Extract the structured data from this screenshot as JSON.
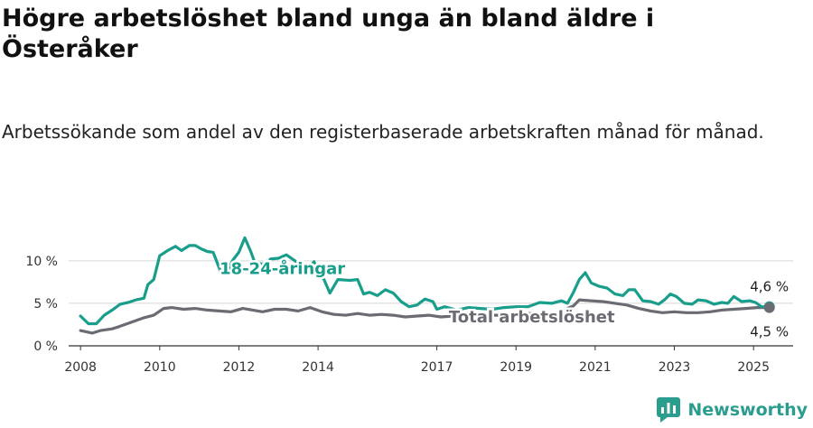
{
  "header": {
    "title": "Högre arbetslöshet bland unga än bland äldre i Österåker",
    "subtitle": "Arbetssökande som andel av den registerbaserade arbetskraften månad för månad."
  },
  "brand": {
    "name": "Newsworthy",
    "icon": "newsworthy-logo-icon",
    "color": "#2a9d8f"
  },
  "chart_data": {
    "type": "line",
    "title": "Högre arbetslöshet bland unga än bland äldre i Österåker",
    "subtitle": "Arbetssökande som andel av den registerbaserade arbetskraften månad för månad.",
    "xlabel": "",
    "ylabel": "",
    "xlim": [
      2007.7,
      2026.0
    ],
    "ylim": [
      0,
      12
    ],
    "yticks": [
      0,
      5,
      10
    ],
    "ytick_labels": [
      "0 %",
      "5 %",
      "10 %"
    ],
    "xticks": [
      2008,
      2010,
      2012,
      2014,
      2017,
      2019,
      2021,
      2023,
      2025
    ],
    "xtick_labels": [
      "2008",
      "2010",
      "2012",
      "2014",
      "2017",
      "2019",
      "2021",
      "2023",
      "2025"
    ],
    "grid": "horizontal",
    "series": [
      {
        "name": "18-24-åringar",
        "color": "#1a9e8c",
        "points": [
          [
            2008.0,
            3.5
          ],
          [
            2008.2,
            2.6
          ],
          [
            2008.4,
            2.6
          ],
          [
            2008.6,
            3.6
          ],
          [
            2008.8,
            4.2
          ],
          [
            2009.0,
            4.9
          ],
          [
            2009.2,
            5.1
          ],
          [
            2009.4,
            5.4
          ],
          [
            2009.6,
            5.6
          ],
          [
            2009.7,
            7.2
          ],
          [
            2009.85,
            7.8
          ],
          [
            2010.0,
            10.6
          ],
          [
            2010.2,
            11.2
          ],
          [
            2010.4,
            11.7
          ],
          [
            2010.55,
            11.2
          ],
          [
            2010.75,
            11.8
          ],
          [
            2010.9,
            11.8
          ],
          [
            2011.05,
            11.4
          ],
          [
            2011.2,
            11.1
          ],
          [
            2011.35,
            11.0
          ],
          [
            2011.55,
            8.6
          ],
          [
            2011.7,
            8.7
          ],
          [
            2011.85,
            10.1
          ],
          [
            2012.0,
            11.0
          ],
          [
            2012.15,
            12.7
          ],
          [
            2012.3,
            11.1
          ],
          [
            2012.4,
            9.8
          ],
          [
            2012.6,
            9.6
          ],
          [
            2012.8,
            10.2
          ],
          [
            2013.0,
            10.3
          ],
          [
            2013.2,
            10.7
          ],
          [
            2013.45,
            9.9
          ],
          [
            2013.7,
            8.9
          ],
          [
            2013.9,
            9.9
          ],
          [
            2014.0,
            8.5
          ],
          [
            2014.15,
            7.8
          ],
          [
            2014.3,
            6.2
          ],
          [
            2014.5,
            7.8
          ],
          [
            2014.8,
            7.7
          ],
          [
            2015.0,
            7.8
          ],
          [
            2015.15,
            6.1
          ],
          [
            2015.3,
            6.3
          ],
          [
            2015.5,
            5.9
          ],
          [
            2015.7,
            6.6
          ],
          [
            2015.9,
            6.2
          ],
          [
            2016.1,
            5.2
          ],
          [
            2016.3,
            4.6
          ],
          [
            2016.5,
            4.8
          ],
          [
            2016.7,
            5.5
          ],
          [
            2016.9,
            5.2
          ],
          [
            2017.0,
            4.3
          ],
          [
            2017.2,
            4.6
          ],
          [
            2017.5,
            4.2
          ],
          [
            2017.8,
            4.5
          ],
          [
            2018.1,
            4.4
          ],
          [
            2018.4,
            4.3
          ],
          [
            2018.7,
            4.5
          ],
          [
            2019.0,
            4.6
          ],
          [
            2019.3,
            4.6
          ],
          [
            2019.6,
            5.1
          ],
          [
            2019.9,
            5.0
          ],
          [
            2020.15,
            5.3
          ],
          [
            2020.3,
            5.0
          ],
          [
            2020.45,
            6.3
          ],
          [
            2020.6,
            7.8
          ],
          [
            2020.75,
            8.6
          ],
          [
            2020.9,
            7.4
          ],
          [
            2021.1,
            7.0
          ],
          [
            2021.3,
            6.8
          ],
          [
            2021.5,
            6.1
          ],
          [
            2021.7,
            5.9
          ],
          [
            2021.85,
            6.6
          ],
          [
            2022.0,
            6.6
          ],
          [
            2022.2,
            5.3
          ],
          [
            2022.4,
            5.2
          ],
          [
            2022.6,
            4.9
          ],
          [
            2022.75,
            5.4
          ],
          [
            2022.9,
            6.1
          ],
          [
            2023.05,
            5.8
          ],
          [
            2023.25,
            5.0
          ],
          [
            2023.45,
            4.9
          ],
          [
            2023.6,
            5.4
          ],
          [
            2023.8,
            5.3
          ],
          [
            2024.0,
            4.9
          ],
          [
            2024.2,
            5.1
          ],
          [
            2024.35,
            5.0
          ],
          [
            2024.5,
            5.8
          ],
          [
            2024.7,
            5.2
          ],
          [
            2024.9,
            5.3
          ],
          [
            2025.05,
            5.1
          ],
          [
            2025.2,
            4.6
          ],
          [
            2025.4,
            4.6
          ]
        ]
      },
      {
        "name": "Total arbetslöshet",
        "color": "#6b6b73",
        "points": [
          [
            2008.0,
            1.8
          ],
          [
            2008.3,
            1.5
          ],
          [
            2008.5,
            1.8
          ],
          [
            2008.8,
            2.0
          ],
          [
            2009.0,
            2.3
          ],
          [
            2009.3,
            2.8
          ],
          [
            2009.6,
            3.3
          ],
          [
            2009.85,
            3.6
          ],
          [
            2010.1,
            4.4
          ],
          [
            2010.3,
            4.5
          ],
          [
            2010.6,
            4.3
          ],
          [
            2010.9,
            4.4
          ],
          [
            2011.2,
            4.2
          ],
          [
            2011.5,
            4.1
          ],
          [
            2011.8,
            4.0
          ],
          [
            2012.1,
            4.4
          ],
          [
            2012.35,
            4.2
          ],
          [
            2012.6,
            4.0
          ],
          [
            2012.9,
            4.3
          ],
          [
            2013.2,
            4.3
          ],
          [
            2013.5,
            4.1
          ],
          [
            2013.8,
            4.5
          ],
          [
            2014.1,
            4.0
          ],
          [
            2014.4,
            3.7
          ],
          [
            2014.7,
            3.6
          ],
          [
            2015.0,
            3.8
          ],
          [
            2015.3,
            3.6
          ],
          [
            2015.6,
            3.7
          ],
          [
            2015.9,
            3.6
          ],
          [
            2016.2,
            3.4
          ],
          [
            2016.5,
            3.5
          ],
          [
            2016.8,
            3.6
          ],
          [
            2017.1,
            3.4
          ],
          [
            2017.4,
            3.5
          ],
          [
            2017.7,
            3.6
          ],
          [
            2018.0,
            3.5
          ],
          [
            2018.4,
            3.6
          ],
          [
            2018.8,
            3.6
          ],
          [
            2019.2,
            3.8
          ],
          [
            2019.6,
            3.8
          ],
          [
            2020.0,
            3.8
          ],
          [
            2020.25,
            4.3
          ],
          [
            2020.45,
            4.7
          ],
          [
            2020.6,
            5.4
          ],
          [
            2020.9,
            5.3
          ],
          [
            2021.2,
            5.2
          ],
          [
            2021.5,
            5.0
          ],
          [
            2021.8,
            4.8
          ],
          [
            2022.1,
            4.4
          ],
          [
            2022.4,
            4.1
          ],
          [
            2022.7,
            3.9
          ],
          [
            2023.0,
            4.0
          ],
          [
            2023.3,
            3.9
          ],
          [
            2023.6,
            3.9
          ],
          [
            2023.9,
            4.0
          ],
          [
            2024.2,
            4.2
          ],
          [
            2024.5,
            4.3
          ],
          [
            2024.8,
            4.4
          ],
          [
            2025.1,
            4.5
          ],
          [
            2025.4,
            4.5
          ]
        ]
      }
    ],
    "series_labels": [
      {
        "text": "18-24-åringar",
        "x": 2013.1,
        "y": 9.1
      },
      {
        "text": "Total arbetslöshet",
        "x": 2019.4,
        "y": 3.4
      }
    ],
    "end_labels": [
      {
        "text": "4,6 %",
        "series": "18-24-åringar"
      },
      {
        "text": "4,5 %",
        "series": "Total arbetslöshet"
      }
    ]
  }
}
